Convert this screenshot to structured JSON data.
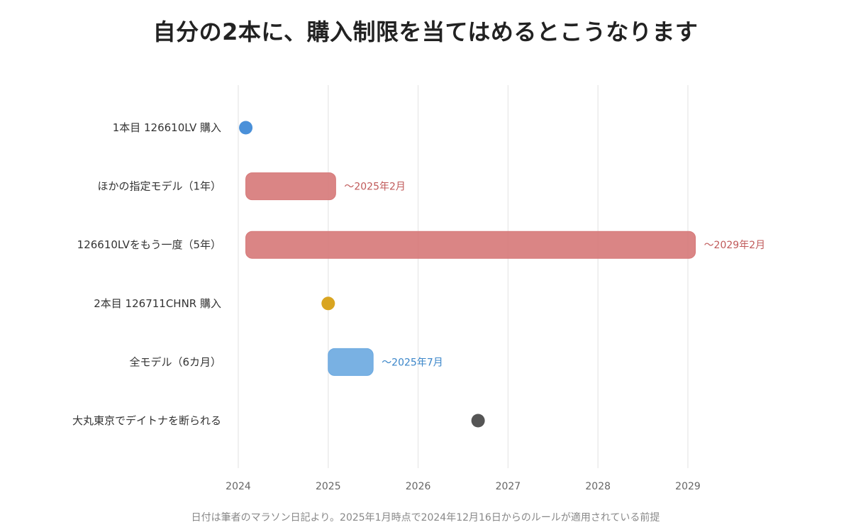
{
  "title": "自分の2本に、購入制限を当てはめるとこうなります",
  "footnote": "日付は筆者のマラソン日記より。2025年1月時点で2024年12月16日からのルールが適用されている前提",
  "chart_data": {
    "type": "timeline",
    "x_ticks": [
      "2024",
      "2025",
      "2026",
      "2027",
      "2028",
      "2029"
    ],
    "x_range": [
      "2024-01",
      "2030-04"
    ],
    "grid": true,
    "rows": [
      {
        "label": "1本目 126610LV 購入",
        "kind": "point",
        "date": "2024-02",
        "color": "#4a90d9"
      },
      {
        "label": "ほかの指定モデル（1年）",
        "kind": "range",
        "start": "2024-02",
        "end": "2025-02",
        "end_label": "〜2025年2月",
        "color": "#d67878",
        "label_color": "#c05a5a"
      },
      {
        "label": "126610LVをもう一度（5年）",
        "kind": "range",
        "start": "2024-02",
        "end": "2029-02",
        "end_label": "〜2029年2月",
        "color": "#d67878",
        "label_color": "#c05a5a"
      },
      {
        "label": "2本目 126711CHNR 購入",
        "kind": "point",
        "date": "2025-01",
        "color": "#d9a521"
      },
      {
        "label": "全モデル（6カ月）",
        "kind": "range",
        "start": "2025-01",
        "end": "2025-07",
        "end_label": "〜2025年7月",
        "color": "#6aa8e0",
        "label_color": "#3a85c9"
      },
      {
        "label": "大丸東京でデイトナを断られる",
        "kind": "point",
        "date": "2026-09",
        "color": "#555555"
      }
    ]
  }
}
